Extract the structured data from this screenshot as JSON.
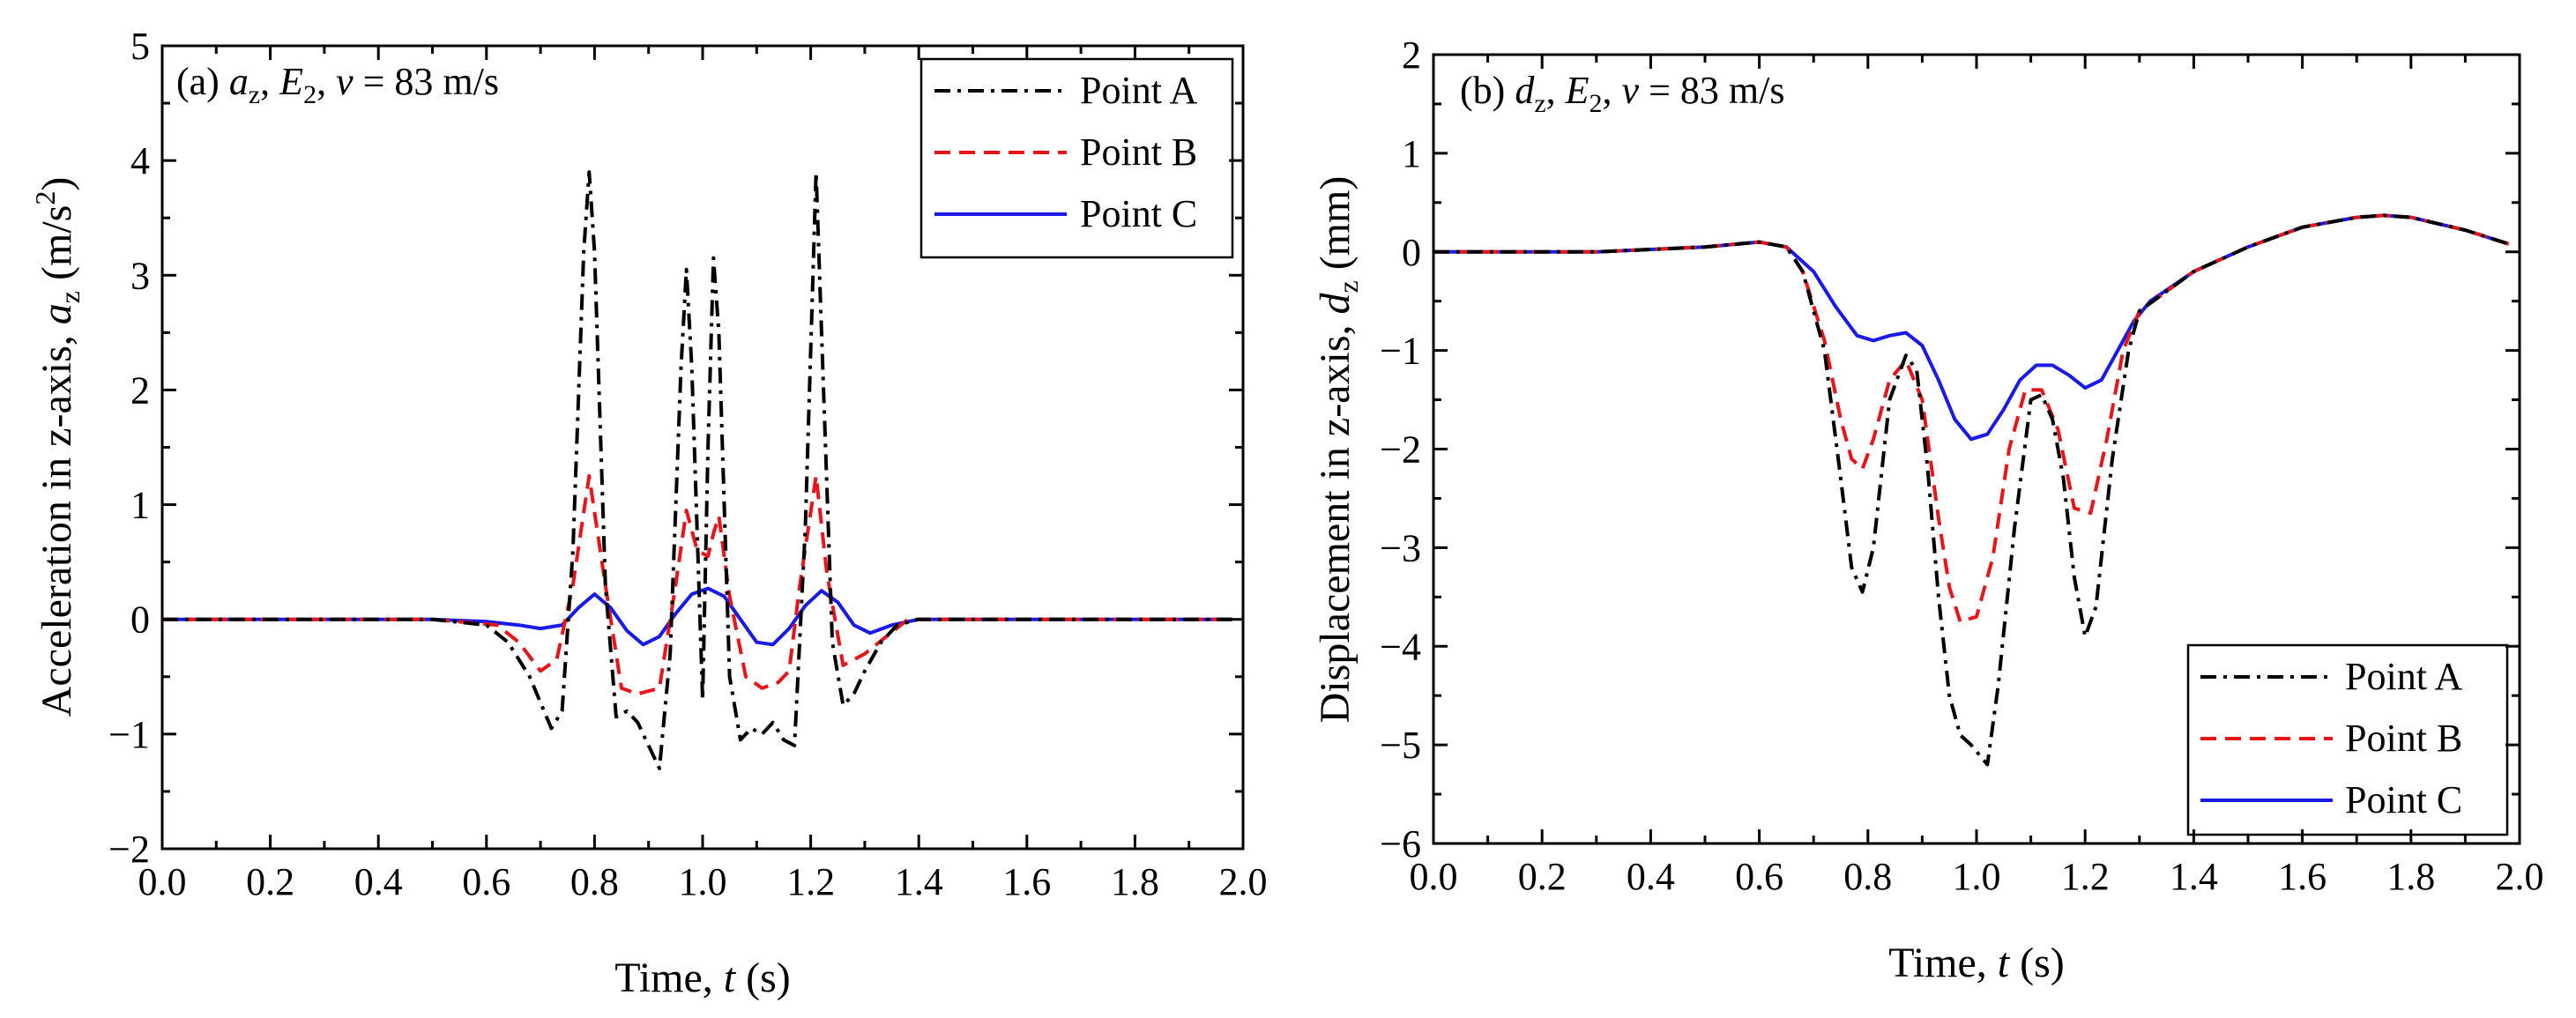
{
  "chart_data": [
    {
      "type": "line",
      "panel_label": "(a)",
      "title_parts": {
        "var": "a",
        "var_sub": "z",
        "case": "E",
        "case_sub": "2",
        "speed_var": "v",
        "speed_text": " = 83 m/s"
      },
      "xlabel_parts": {
        "pre": "Time, ",
        "var": "t",
        "post": " (s)"
      },
      "ylabel_parts": {
        "pre": "Acceleration in z-axis, ",
        "var": "a",
        "sub": "z",
        "unit_pre": " (m/s",
        "unit_sup": "2",
        "unit_post": ")"
      },
      "xlim": [
        0,
        2.0
      ],
      "ylim": [
        -2,
        5
      ],
      "xticks": [
        "0.0",
        "0.2",
        "0.4",
        "0.6",
        "0.8",
        "1.0",
        "1.2",
        "1.4",
        "1.6",
        "1.8",
        "2.0"
      ],
      "yticks": [
        "−2",
        "−1",
        "0",
        "1",
        "2",
        "3",
        "4",
        "5"
      ],
      "legend_position": "top-right",
      "series": [
        {
          "name": "Point A",
          "color": "#000000",
          "dash": "dashdot",
          "x": [
            0,
            0.5,
            0.6,
            0.64,
            0.68,
            0.72,
            0.74,
            0.76,
            0.78,
            0.79,
            0.8,
            0.82,
            0.84,
            0.86,
            0.88,
            0.9,
            0.92,
            0.94,
            0.96,
            0.97,
            0.98,
            1.0,
            1.01,
            1.02,
            1.03,
            1.05,
            1.07,
            1.09,
            1.11,
            1.13,
            1.15,
            1.17,
            1.19,
            1.21,
            1.22,
            1.24,
            1.26,
            1.28,
            1.3,
            1.33,
            1.36,
            1.4,
            1.5,
            1.98
          ],
          "y": [
            0,
            0,
            -0.05,
            -0.2,
            -0.5,
            -0.95,
            -0.8,
            0.6,
            3.2,
            3.9,
            3.2,
            0.3,
            -0.85,
            -0.8,
            -0.9,
            -1.1,
            -1.3,
            -0.3,
            2.2,
            3.05,
            2.2,
            -0.7,
            1.5,
            3.15,
            2.5,
            -0.5,
            -1.05,
            -0.95,
            -1.0,
            -0.9,
            -1.05,
            -1.1,
            0.8,
            3.9,
            2.5,
            -0.2,
            -0.75,
            -0.65,
            -0.45,
            -0.2,
            -0.05,
            0,
            0,
            0
          ]
        },
        {
          "name": "Point B",
          "color": "#e8141a",
          "dash": "dashed",
          "x": [
            0,
            0.5,
            0.62,
            0.66,
            0.7,
            0.73,
            0.76,
            0.79,
            0.82,
            0.85,
            0.88,
            0.92,
            0.95,
            0.97,
            0.99,
            1.01,
            1.02,
            1.03,
            1.05,
            1.08,
            1.11,
            1.14,
            1.16,
            1.18,
            1.21,
            1.23,
            1.26,
            1.3,
            1.34,
            1.38,
            1.45,
            1.98
          ],
          "y": [
            0,
            0,
            -0.05,
            -0.2,
            -0.45,
            -0.35,
            0.3,
            1.25,
            0.3,
            -0.6,
            -0.65,
            -0.6,
            0.3,
            0.95,
            0.6,
            0.55,
            0.75,
            0.9,
            0.2,
            -0.5,
            -0.6,
            -0.55,
            -0.45,
            0.3,
            1.25,
            0.4,
            -0.4,
            -0.3,
            -0.15,
            0,
            0,
            0
          ]
        },
        {
          "name": "Point C",
          "color": "#1a1ae6",
          "dash": "solid",
          "x": [
            0,
            0.5,
            0.6,
            0.66,
            0.7,
            0.74,
            0.77,
            0.8,
            0.83,
            0.86,
            0.89,
            0.92,
            0.95,
            0.98,
            1.01,
            1.04,
            1.07,
            1.1,
            1.13,
            1.16,
            1.19,
            1.22,
            1.25,
            1.28,
            1.31,
            1.35,
            1.4,
            1.5,
            1.98
          ],
          "y": [
            0,
            0,
            -0.02,
            -0.05,
            -0.08,
            -0.05,
            0.1,
            0.22,
            0.1,
            -0.1,
            -0.22,
            -0.15,
            0.05,
            0.22,
            0.27,
            0.2,
            0.0,
            -0.2,
            -0.22,
            -0.08,
            0.12,
            0.25,
            0.15,
            -0.05,
            -0.12,
            -0.05,
            0,
            0,
            0
          ]
        }
      ]
    },
    {
      "type": "line",
      "panel_label": "(b)",
      "title_parts": {
        "var": "d",
        "var_sub": "z",
        "case": "E",
        "case_sub": "2",
        "speed_var": "v",
        "speed_text": " = 83 m/s"
      },
      "xlabel_parts": {
        "pre": "Time, ",
        "var": "t",
        "post": " (s)"
      },
      "ylabel_parts": {
        "pre": "Displacement in z-axis, ",
        "var": "d",
        "sub": "z",
        "unit_pre": " (mm)",
        "unit_sup": "",
        "unit_post": ""
      },
      "xlim": [
        0,
        2.0
      ],
      "ylim": [
        -6,
        2
      ],
      "xticks": [
        "0.0",
        "0.2",
        "0.4",
        "0.6",
        "0.8",
        "1.0",
        "1.2",
        "1.4",
        "1.6",
        "1.8",
        "2.0"
      ],
      "yticks": [
        "−6",
        "−5",
        "−4",
        "−3",
        "−2",
        "−1",
        "0",
        "1",
        "2"
      ],
      "legend_position": "bottom-right",
      "series": [
        {
          "name": "Point A",
          "color": "#000000",
          "dash": "dashdot",
          "x": [
            0,
            0.3,
            0.5,
            0.6,
            0.65,
            0.68,
            0.72,
            0.75,
            0.77,
            0.79,
            0.81,
            0.84,
            0.87,
            0.89,
            0.91,
            0.93,
            0.95,
            0.97,
            0.99,
            1.02,
            1.04,
            1.07,
            1.1,
            1.12,
            1.14,
            1.16,
            1.18,
            1.2,
            1.22,
            1.25,
            1.28,
            1.3,
            1.4,
            1.5,
            1.6,
            1.7,
            1.75,
            1.8,
            1.9,
            1.98
          ],
          "y": [
            0,
            0,
            0.05,
            0.1,
            0.05,
            -0.2,
            -1.0,
            -2.3,
            -3.2,
            -3.45,
            -3.0,
            -1.5,
            -1.05,
            -1.2,
            -2.2,
            -3.5,
            -4.5,
            -4.9,
            -5.0,
            -5.2,
            -4.4,
            -2.8,
            -1.5,
            -1.45,
            -1.7,
            -2.3,
            -3.3,
            -3.9,
            -3.6,
            -2.1,
            -1.0,
            -0.6,
            -0.2,
            0.05,
            0.25,
            0.35,
            0.37,
            0.35,
            0.22,
            0.08
          ]
        },
        {
          "name": "Point B",
          "color": "#e8141a",
          "dash": "dashed",
          "x": [
            0,
            0.3,
            0.5,
            0.6,
            0.65,
            0.68,
            0.72,
            0.75,
            0.77,
            0.79,
            0.81,
            0.84,
            0.87,
            0.9,
            0.93,
            0.95,
            0.97,
            1.0,
            1.03,
            1.06,
            1.09,
            1.12,
            1.15,
            1.18,
            1.21,
            1.24,
            1.27,
            1.3,
            1.4,
            1.5,
            1.6,
            1.7,
            1.75,
            1.8,
            1.9,
            1.98
          ],
          "y": [
            0,
            0,
            0.05,
            0.1,
            0.05,
            -0.2,
            -0.9,
            -1.7,
            -2.1,
            -2.2,
            -1.9,
            -1.3,
            -1.1,
            -1.5,
            -2.7,
            -3.4,
            -3.75,
            -3.7,
            -3.1,
            -2.0,
            -1.4,
            -1.4,
            -1.8,
            -2.6,
            -2.65,
            -1.9,
            -1.0,
            -0.6,
            -0.2,
            0.05,
            0.25,
            0.35,
            0.37,
            0.35,
            0.22,
            0.08
          ]
        },
        {
          "name": "Point C",
          "color": "#1a1ae6",
          "dash": "solid",
          "x": [
            0,
            0.3,
            0.5,
            0.6,
            0.65,
            0.7,
            0.74,
            0.78,
            0.81,
            0.84,
            0.87,
            0.9,
            0.93,
            0.96,
            0.99,
            1.02,
            1.05,
            1.08,
            1.11,
            1.14,
            1.17,
            1.2,
            1.23,
            1.26,
            1.29,
            1.32,
            1.4,
            1.5,
            1.6,
            1.7,
            1.75,
            1.8,
            1.9,
            1.98
          ],
          "y": [
            0,
            0,
            0.05,
            0.1,
            0.05,
            -0.2,
            -0.55,
            -0.85,
            -0.9,
            -0.85,
            -0.82,
            -0.95,
            -1.3,
            -1.7,
            -1.9,
            -1.85,
            -1.6,
            -1.3,
            -1.15,
            -1.15,
            -1.25,
            -1.38,
            -1.3,
            -1.0,
            -0.7,
            -0.5,
            -0.2,
            0.05,
            0.25,
            0.35,
            0.37,
            0.35,
            0.22,
            0.08
          ]
        }
      ]
    }
  ]
}
